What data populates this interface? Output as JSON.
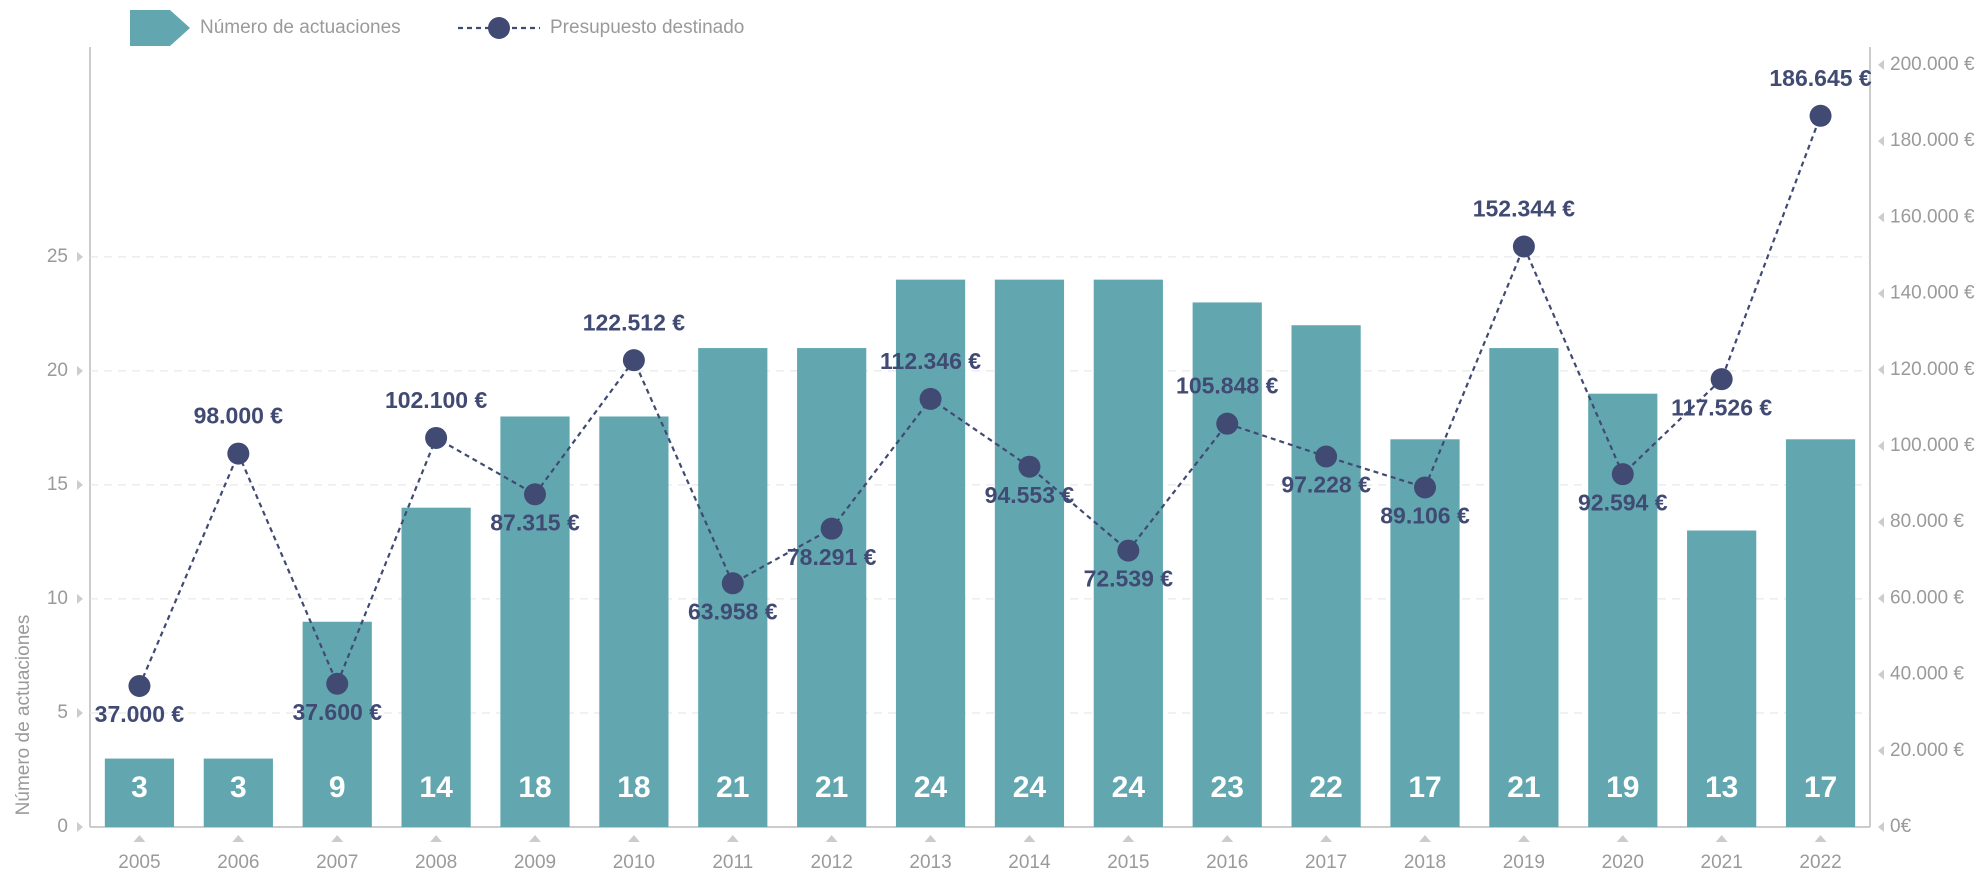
{
  "chart_data": {
    "type": "bar-line",
    "y_axis_label": "Número de actuaciones",
    "categories": [
      "2005",
      "2006",
      "2007",
      "2008",
      "2009",
      "2010",
      "2011",
      "2012",
      "2013",
      "2014",
      "2015",
      "2016",
      "2017",
      "2018",
      "2019",
      "2020",
      "2021",
      "2022"
    ],
    "series": [
      {
        "name": "Número de actuaciones",
        "type": "bar",
        "color": "#62a7b0",
        "values": [
          3,
          3,
          9,
          14,
          18,
          18,
          21,
          21,
          24,
          24,
          24,
          23,
          22,
          17,
          21,
          19,
          13,
          17
        ]
      },
      {
        "name": "Presupuesto destinado",
        "type": "line",
        "axis": "y2",
        "color": "#404a73",
        "values": [
          37000,
          98000,
          37600,
          102100,
          87315,
          122512,
          63958,
          78291,
          112346,
          94553,
          72539,
          105848,
          97228,
          89106,
          152344,
          92594,
          117526,
          186645
        ],
        "value_labels": [
          "37.000 €",
          "98.000 €",
          "37.600 €",
          "102.100 €",
          "87.315 €",
          "122.512 €",
          "63.958 €",
          "78.291 €",
          "112.346 €",
          "94.553 €",
          "72.539 €",
          "105.848 €",
          "97.228 €",
          "89.106 €",
          "152.344 €",
          "92.594 €",
          "117.526 €",
          "186.645 €"
        ]
      }
    ],
    "ylim": [
      0,
      34.2
    ],
    "yticks": [
      0,
      5,
      10,
      15,
      20,
      25
    ],
    "y2lim": [
      0,
      204700
    ],
    "y2ticks": [
      {
        "value": 0,
        "label": "0€"
      },
      {
        "value": 20000,
        "label": "20.000 €"
      },
      {
        "value": 40000,
        "label": "40.000 €"
      },
      {
        "value": 60000,
        "label": "60.000 €"
      },
      {
        "value": 80000,
        "label": "80.000 €"
      },
      {
        "value": 100000,
        "label": "100.000 €"
      },
      {
        "value": 120000,
        "label": "120.000 €"
      },
      {
        "value": 140000,
        "label": "140.000 €"
      },
      {
        "value": 160000,
        "label": "160.000 €"
      },
      {
        "value": 180000,
        "label": "180.000 €"
      },
      {
        "value": 200000,
        "label": "200.000 €"
      }
    ],
    "grid": true,
    "legend": "top-left"
  }
}
